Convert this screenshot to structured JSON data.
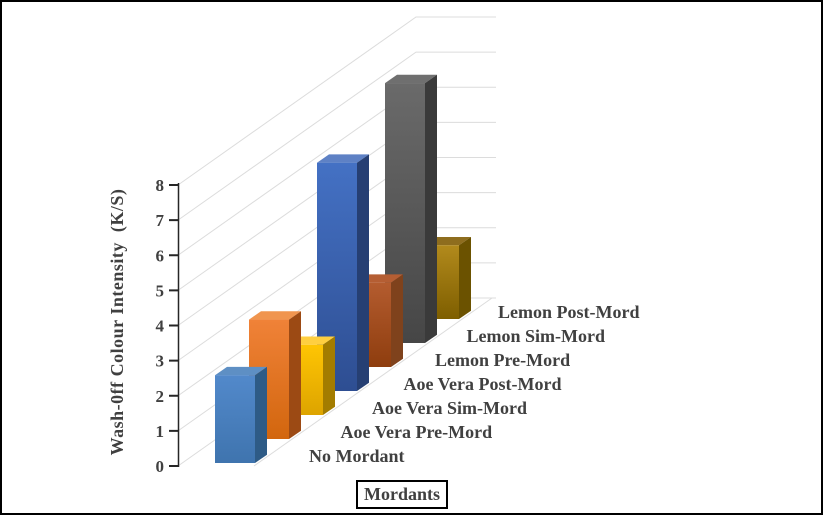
{
  "chart_data": {
    "type": "bar",
    "projection": "3d-column",
    "title": "",
    "ylabel": "Wash-0ff Colour Intensity  (K/S)",
    "xlabel": "Mordants",
    "ylim": [
      0,
      8
    ],
    "ytick_step": 1,
    "grid": true,
    "legend": "none",
    "gridline_color": "#DCDCDC",
    "axis_color": "#262626",
    "text_color": "#404040",
    "categories": [
      "No Mordant",
      "Aoe Vera Pre-Mord",
      "Aoe Vera Sim-Mord",
      "Aoe Vera Post-Mord",
      "Lemon Pre-Mord",
      "Lemon Sim-Mord",
      "Lemon Post-Mord"
    ],
    "values": [
      2.5,
      3.4,
      2.0,
      6.5,
      2.4,
      7.4,
      2.1
    ],
    "bar_colors": [
      {
        "top": "#5E8FC4",
        "front_top": "#5289CB",
        "front_bottom": "#3F74AE",
        "side": "#2E5B86"
      },
      {
        "top": "#F0954F",
        "front_top": "#F08238",
        "front_bottom": "#D2660E",
        "side": "#9C4A14"
      },
      {
        "top": "#FFCF40",
        "front_top": "#FFC503",
        "front_bottom": "#DDA400",
        "side": "#A37C00"
      },
      {
        "top": "#5E81C5",
        "front_top": "#4471C4",
        "front_bottom": "#2E4E92",
        "side": "#263F73"
      },
      {
        "top": "#B55E33",
        "front_top": "#B45C2F",
        "front_bottom": "#8E3D0E",
        "side": "#7F421C"
      },
      {
        "top": "#6F6F6F",
        "front_top": "#6A6A6A",
        "front_bottom": "#464646",
        "side": "#3A3A3A"
      },
      {
        "top": "#8E6D1E",
        "front_top": "#B28A1C",
        "front_bottom": "#7E5E00",
        "side": "#6B5200"
      }
    ]
  }
}
